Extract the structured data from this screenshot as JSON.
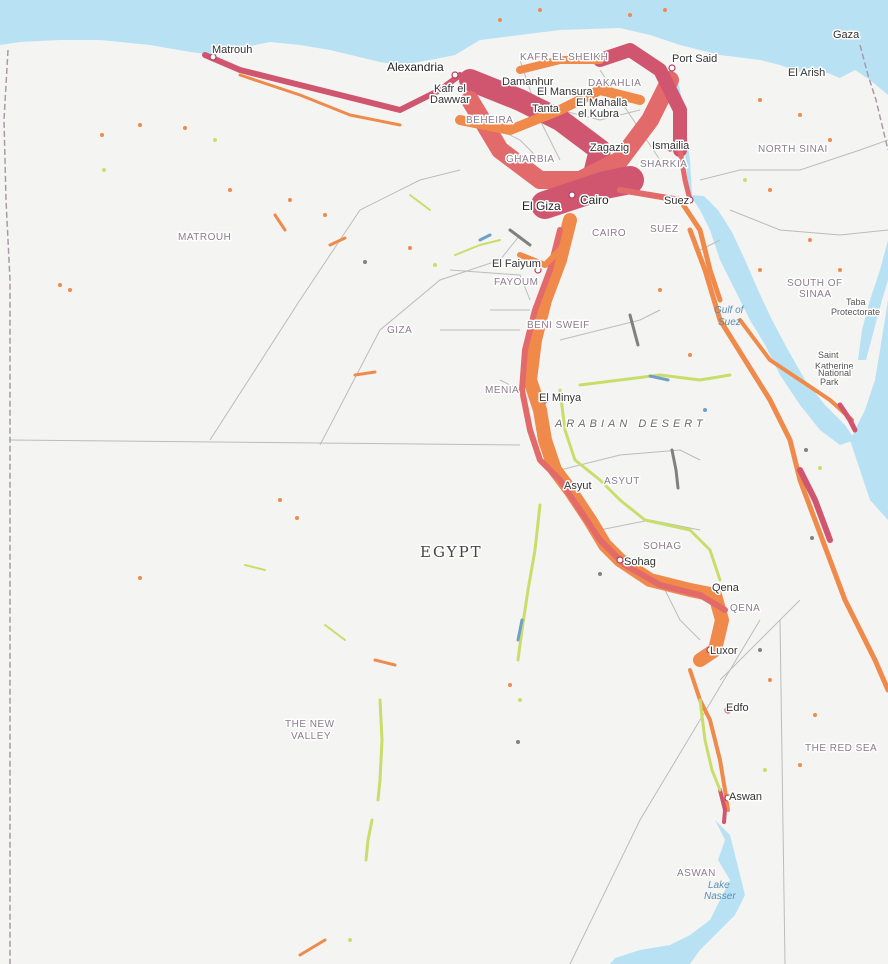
{
  "map": {
    "country": "EGYPT",
    "region": "ARABIAN DESERT",
    "cities": [
      {
        "name": "Gaza"
      },
      {
        "name": "Matrouh"
      },
      {
        "name": "Alexandria"
      },
      {
        "name": "Port Said"
      },
      {
        "name": "El Arish"
      },
      {
        "name": "Kafr el"
      },
      {
        "name": "Dawwar"
      },
      {
        "name": "Damanhur"
      },
      {
        "name": "El Mansura"
      },
      {
        "name": "Tanta"
      },
      {
        "name": "El Mahalla"
      },
      {
        "name": "el Kubra"
      },
      {
        "name": "Zagazig"
      },
      {
        "name": "Ismailia"
      },
      {
        "name": "Cairo"
      },
      {
        "name": "El Giza"
      },
      {
        "name": "Suez"
      },
      {
        "name": "El Faiyum"
      },
      {
        "name": "El Minya"
      },
      {
        "name": "Asyut"
      },
      {
        "name": "Sohag"
      },
      {
        "name": "Qena"
      },
      {
        "name": "Luxor"
      },
      {
        "name": "Edfo"
      },
      {
        "name": "Aswan"
      }
    ],
    "governorates": [
      "MATROUH",
      "GIZA",
      "FAYOUM",
      "BENI SWEIF",
      "MENIA",
      "ASYUT",
      "SOHAG",
      "QENA",
      "THE NEW",
      "VALLEY",
      "NORTH SINAI",
      "SOUTH OF",
      "SINAA",
      "CAIRO",
      "SUEZ",
      "THE RED SEA",
      "ASWAN",
      "BEHEIRA",
      "GHARBIA",
      "DAKAHLIA",
      "SHARKIA",
      "KAFR EL SHEIKH"
    ],
    "water": [
      "Gulf of",
      "Suez",
      "Lake",
      "Nasser"
    ],
    "parks": [
      {
        "lines": [
          "Taba",
          "Protectorate"
        ]
      },
      {
        "lines": [
          "Saint",
          "Katherine",
          "National",
          "Park"
        ]
      }
    ],
    "colors": {
      "land": "#f4f4f2",
      "sea": "#b8e2f3",
      "border": "#b9b9b9",
      "traffic_heavy": "#d0566f",
      "traffic_high": "#e36a6a",
      "traffic_medium": "#f08a4b",
      "traffic_low": "#c9de6a",
      "traffic_none": "#808080",
      "traffic_alt": "#6fa0c8"
    }
  }
}
